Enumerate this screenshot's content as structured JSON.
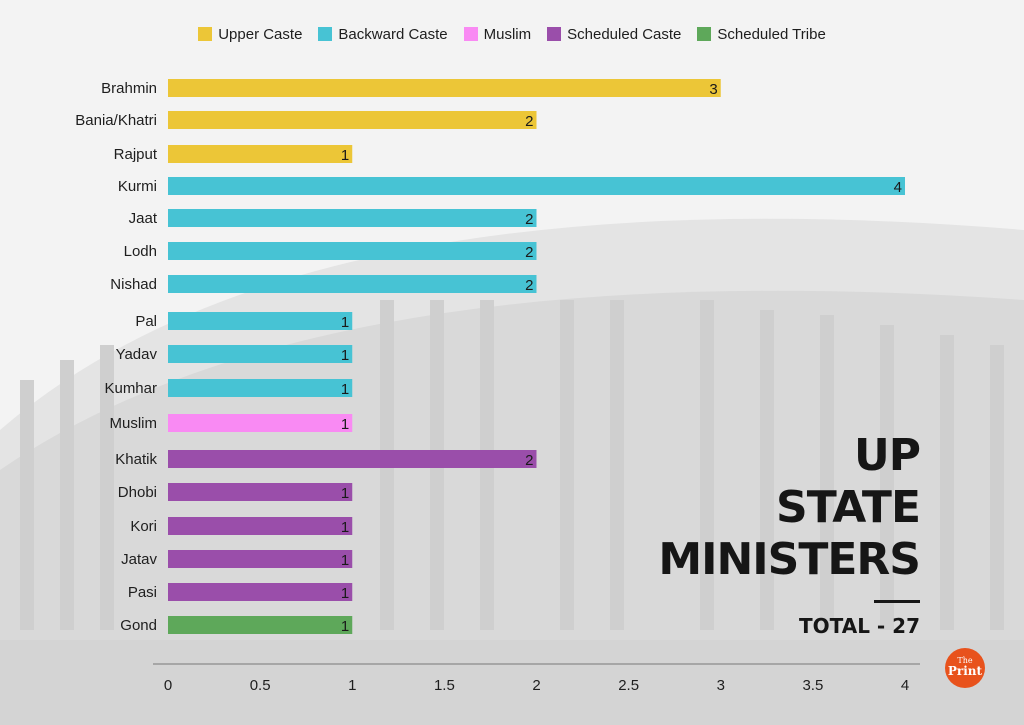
{
  "legend": [
    {
      "label": "Upper Caste",
      "color": "#ecc637"
    },
    {
      "label": "Backward Caste",
      "color": "#47c3d4"
    },
    {
      "label": "Muslim",
      "color": "#f98af3"
    },
    {
      "label": "Scheduled Caste",
      "color": "#9a4eaa"
    },
    {
      "label": "Scheduled Tribe",
      "color": "#5ea85a"
    }
  ],
  "headline": {
    "line1": "UP",
    "line2": "STATE",
    "line3": "MINISTERS"
  },
  "total": "TOTAL - 27",
  "logo": {
    "the": "The",
    "print": "Print"
  },
  "chart_data": {
    "type": "bar",
    "orientation": "horizontal",
    "categories": [
      "Brahmin",
      "Bania/Khatri",
      "Rajput",
      "Kurmi",
      "Jaat",
      "Lodh",
      "Nishad",
      "Pal",
      "Yadav",
      "Kumhar",
      "Muslim",
      "Khatik",
      "Dhobi",
      "Kori",
      "Jatav",
      "Pasi",
      "Gond"
    ],
    "values": [
      3,
      2,
      1,
      4,
      2,
      2,
      2,
      1,
      1,
      1,
      1,
      2,
      1,
      1,
      1,
      1,
      1
    ],
    "groups": [
      "Upper Caste",
      "Upper Caste",
      "Upper Caste",
      "Backward Caste",
      "Backward Caste",
      "Backward Caste",
      "Backward Caste",
      "Backward Caste",
      "Backward Caste",
      "Backward Caste",
      "Muslim",
      "Scheduled Caste",
      "Scheduled Caste",
      "Scheduled Caste",
      "Scheduled Caste",
      "Scheduled Caste",
      "Scheduled Tribe"
    ],
    "xlim": [
      0,
      4
    ],
    "xticks": [
      "0",
      "0.5",
      "1",
      "1.5",
      "2",
      "2.5",
      "3",
      "3.5",
      "4"
    ],
    "grid": false,
    "legend_position": "top"
  }
}
